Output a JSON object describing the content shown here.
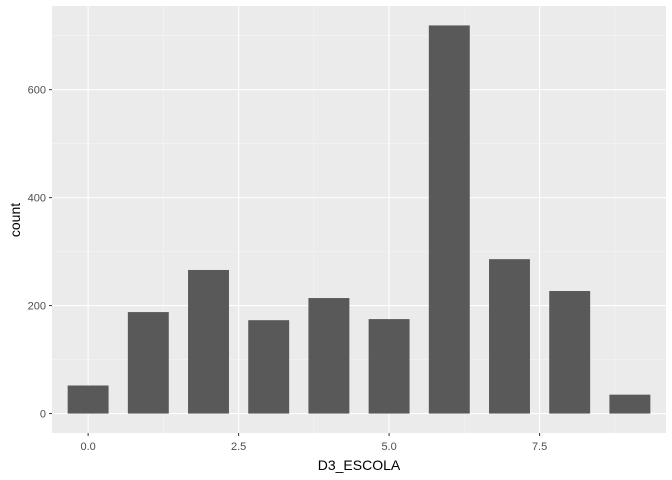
{
  "chart_data": {
    "type": "bar",
    "xlabel": "D3_ESCOLA",
    "ylabel": "count",
    "x": [
      0,
      1,
      2,
      3,
      4,
      5,
      6,
      7,
      8,
      9
    ],
    "values": [
      52,
      188,
      266,
      173,
      214,
      175,
      719,
      286,
      227,
      35
    ],
    "xlim": [
      -0.6,
      9.6
    ],
    "ylim": [
      -36,
      755
    ],
    "x_ticks": [
      0,
      2.5,
      5,
      7.5
    ],
    "x_tick_labels": [
      "0.0",
      "2.5",
      "5.0",
      "7.5"
    ],
    "y_ticks": [
      0,
      200,
      400,
      600
    ],
    "y_tick_labels": [
      "0",
      "200",
      "400",
      "600"
    ],
    "grid": true,
    "panel_background": "#ebebeb",
    "bar_color": "#595959",
    "grid_major_color": "#ffffff",
    "grid_minor_color": "#f5f5f5"
  }
}
